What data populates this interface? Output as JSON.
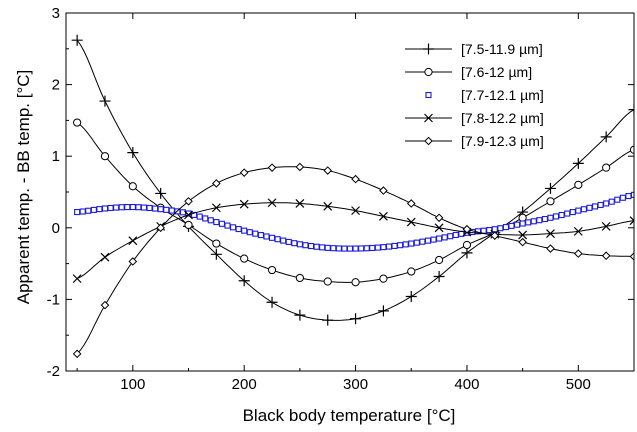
{
  "chart_data": {
    "type": "line",
    "title": "",
    "xlabel": "Black body temperature [°C]",
    "ylabel": "Apparent temp. - BB temp. [°C]",
    "xlim": [
      40,
      550
    ],
    "ylim": [
      -2,
      3
    ],
    "xticks": [
      100,
      200,
      300,
      400,
      500
    ],
    "yticks": [
      -2,
      -1,
      0,
      1,
      2,
      3
    ],
    "grid": false,
    "legend_position": "top-right",
    "x": [
      50,
      75,
      100,
      125,
      150,
      175,
      200,
      225,
      250,
      275,
      300,
      325,
      350,
      375,
      400,
      425,
      450,
      475,
      500,
      525,
      550
    ],
    "series": [
      {
        "name": "[7.5-11.9 µm]",
        "marker": "plus",
        "color": "#000000",
        "values": [
          2.62,
          1.77,
          1.05,
          0.48,
          0.02,
          -0.37,
          -0.74,
          -1.04,
          -1.22,
          -1.29,
          -1.27,
          -1.16,
          -0.96,
          -0.68,
          -0.35,
          -0.07,
          0.22,
          0.55,
          0.9,
          1.27,
          1.65
        ]
      },
      {
        "name": "[7.6-12 µm]",
        "marker": "circle",
        "color": "#000000",
        "values": [
          1.47,
          1.0,
          0.58,
          0.28,
          0.04,
          -0.22,
          -0.43,
          -0.59,
          -0.7,
          -0.75,
          -0.76,
          -0.71,
          -0.61,
          -0.45,
          -0.24,
          -0.07,
          0.14,
          0.37,
          0.6,
          0.84,
          1.09
        ]
      },
      {
        "name": "[7.7-12.1 µm]",
        "marker": "square",
        "color": "#1c1cd6",
        "values": [
          0.22,
          0.27,
          0.29,
          0.26,
          0.2,
          0.08,
          -0.04,
          -0.14,
          -0.23,
          -0.28,
          -0.29,
          -0.27,
          -0.22,
          -0.15,
          -0.07,
          -0.02,
          0.06,
          0.14,
          0.24,
          0.34,
          0.46
        ]
      },
      {
        "name": "[7.8-12.2 µm]",
        "marker": "x",
        "color": "#000000",
        "values": [
          -0.71,
          -0.41,
          -0.18,
          0.02,
          0.18,
          0.28,
          0.33,
          0.35,
          0.34,
          0.3,
          0.24,
          0.16,
          0.08,
          0.0,
          -0.06,
          -0.09,
          -0.1,
          -0.08,
          -0.05,
          0.02,
          0.1
        ]
      },
      {
        "name": "[7.9-12.3 µm]",
        "marker": "diamond",
        "color": "#000000",
        "values": [
          -1.76,
          -1.08,
          -0.47,
          0.0,
          0.37,
          0.62,
          0.77,
          0.84,
          0.85,
          0.8,
          0.68,
          0.52,
          0.34,
          0.14,
          -0.02,
          -0.11,
          -0.2,
          -0.29,
          -0.36,
          -0.39,
          -0.4
        ]
      }
    ]
  }
}
